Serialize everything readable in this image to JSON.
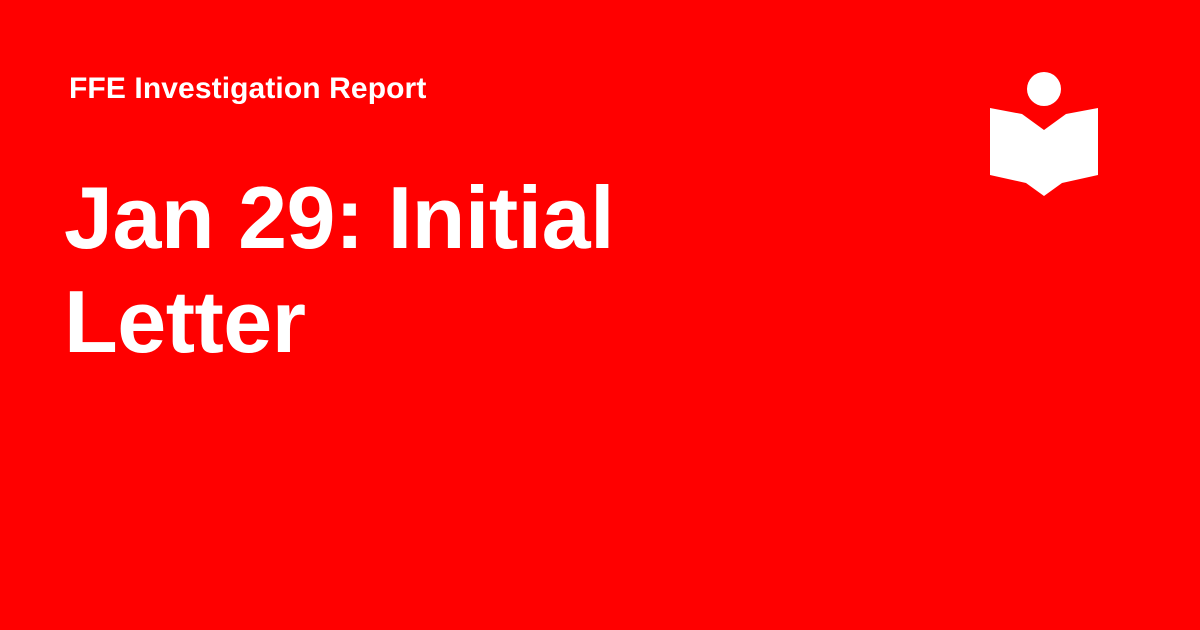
{
  "header": {
    "eyebrow": "FFE Investigation Report"
  },
  "main": {
    "headline": "Jan 29: Initial Letter"
  },
  "brand": {
    "logo_icon": "reader-book-icon",
    "background_color": "#ff0000",
    "foreground_color": "#ffffff"
  }
}
